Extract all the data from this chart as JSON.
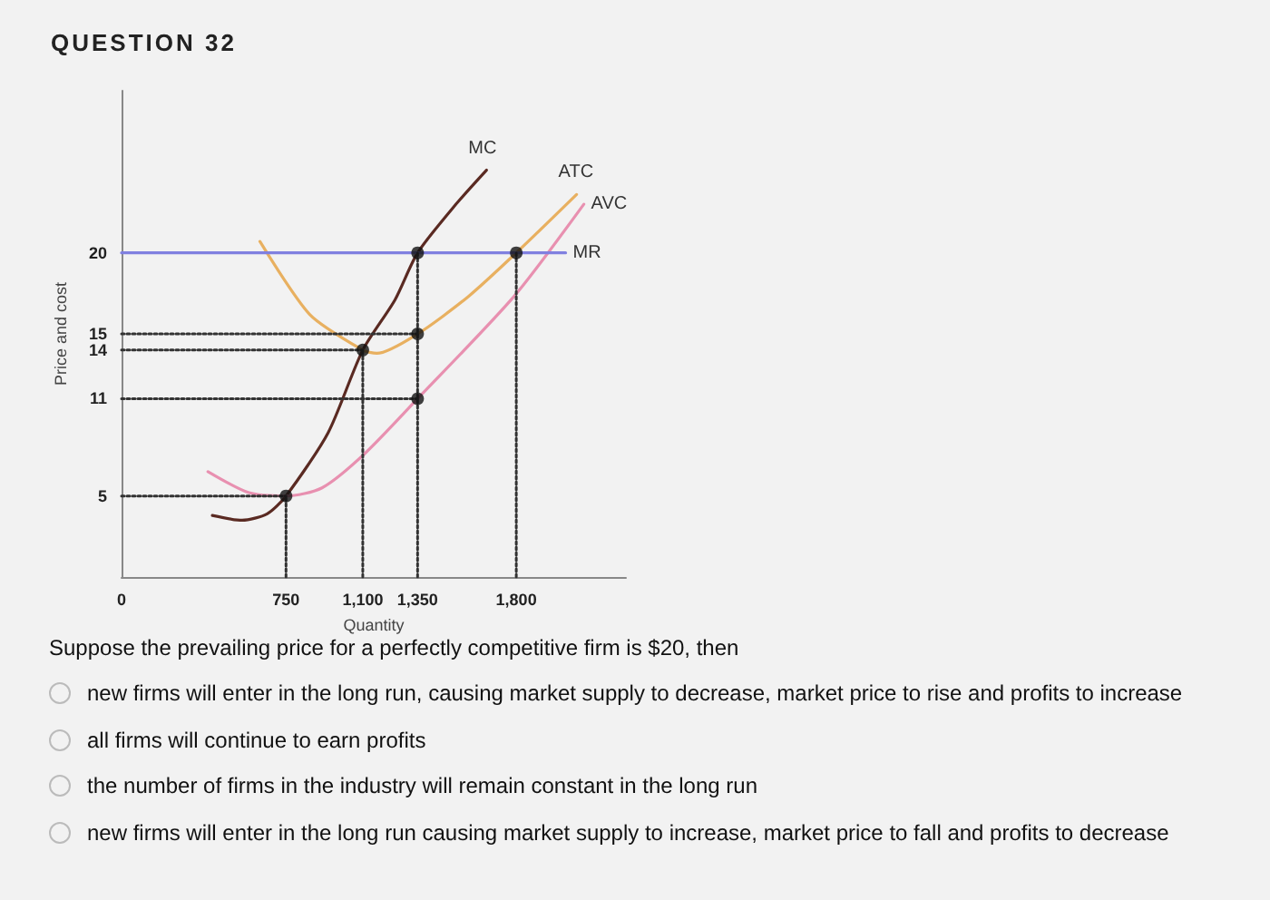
{
  "chart_data": {
    "type": "line",
    "title": "QUESTION 32",
    "xlabel": "Quantity",
    "ylabel": "Price and cost",
    "xlim": [
      0,
      2300
    ],
    "ylim": [
      0,
      30
    ],
    "xticks": [
      0,
      {
        "value": 750,
        "label": "750"
      },
      {
        "value": 1100,
        "label": "1,100"
      },
      {
        "value": 1350,
        "label": "1,350"
      },
      {
        "value": 1800,
        "label": "1,800"
      }
    ],
    "yticks": [
      5,
      11,
      14,
      15,
      20
    ],
    "grid": false,
    "legend": false,
    "series": [
      {
        "name": "MC",
        "color": "#5a2a22",
        "x": [
          414,
          550,
          664,
          750,
          942,
          1100,
          1247,
          1350,
          1525,
          1664
        ],
        "values": [
          3.8,
          3.5,
          3.9,
          5,
          8.9,
          14,
          17.1,
          20,
          23,
          25.1
        ]
      },
      {
        "name": "ATC",
        "color": "#e8b060",
        "x": [
          631,
          858,
          1100,
          1164,
          1350,
          1581,
          1800,
          2075
        ],
        "values": [
          20.7,
          16.2,
          14,
          13.8,
          15,
          17.3,
          20,
          23.6
        ]
      },
      {
        "name": "AVC",
        "color": "#e890b0",
        "x": [
          394,
          581,
          750,
          914,
          1108,
          1350,
          1789,
          2108
        ],
        "values": [
          6.5,
          5.2,
          5,
          5.5,
          7.6,
          11,
          17.3,
          23
        ]
      },
      {
        "name": "MR",
        "color": "#8080e0",
        "x": [
          0,
          2025
        ],
        "values": [
          20,
          20
        ]
      },
      {
        "color": "#333333",
        "line_style": "dotted",
        "x": [
          0,
          1350
        ],
        "values": [
          15,
          15
        ]
      },
      {
        "color": "#333333",
        "line_style": "dotted",
        "x": [
          0,
          1100
        ],
        "values": [
          14,
          14
        ]
      },
      {
        "color": "#333333",
        "line_style": "dotted",
        "x": [
          0,
          1350
        ],
        "values": [
          11,
          11
        ]
      },
      {
        "color": "#333333",
        "line_style": "dotted",
        "x": [
          0,
          750
        ],
        "values": [
          5,
          5
        ]
      },
      {
        "color": "#333333",
        "line_style": "dotted",
        "x": [
          750,
          750
        ],
        "values": [
          0,
          5
        ]
      },
      {
        "color": "#333333",
        "line_style": "dotted",
        "x": [
          1100,
          1100
        ],
        "values": [
          0,
          14
        ]
      },
      {
        "color": "#333333",
        "line_style": "dotted",
        "x": [
          1350,
          1350
        ],
        "values": [
          0,
          20
        ]
      },
      {
        "color": "#333333",
        "line_style": "dotted",
        "x": [
          1800,
          1800
        ],
        "values": [
          0,
          20
        ]
      },
      {
        "type": "scatter",
        "marker": "circle",
        "color": "#111111",
        "x": [
          750,
          1100,
          1350,
          1350,
          1350,
          1800
        ],
        "values": [
          5,
          14,
          20,
          15,
          11,
          20
        ]
      }
    ],
    "annotations": [
      "Suppose the prevailing price for a perfectly competitive firm is $20, then",
      "new firms will enter in the long run, causing market supply to decrease, market price to rise and profits to increase",
      "all firms will continue to earn profits",
      "the number of firms in the industry will remain constant in the long run",
      "new firms will enter in the long run causing market supply to increase, market price to fall and profits to decrease"
    ]
  }
}
